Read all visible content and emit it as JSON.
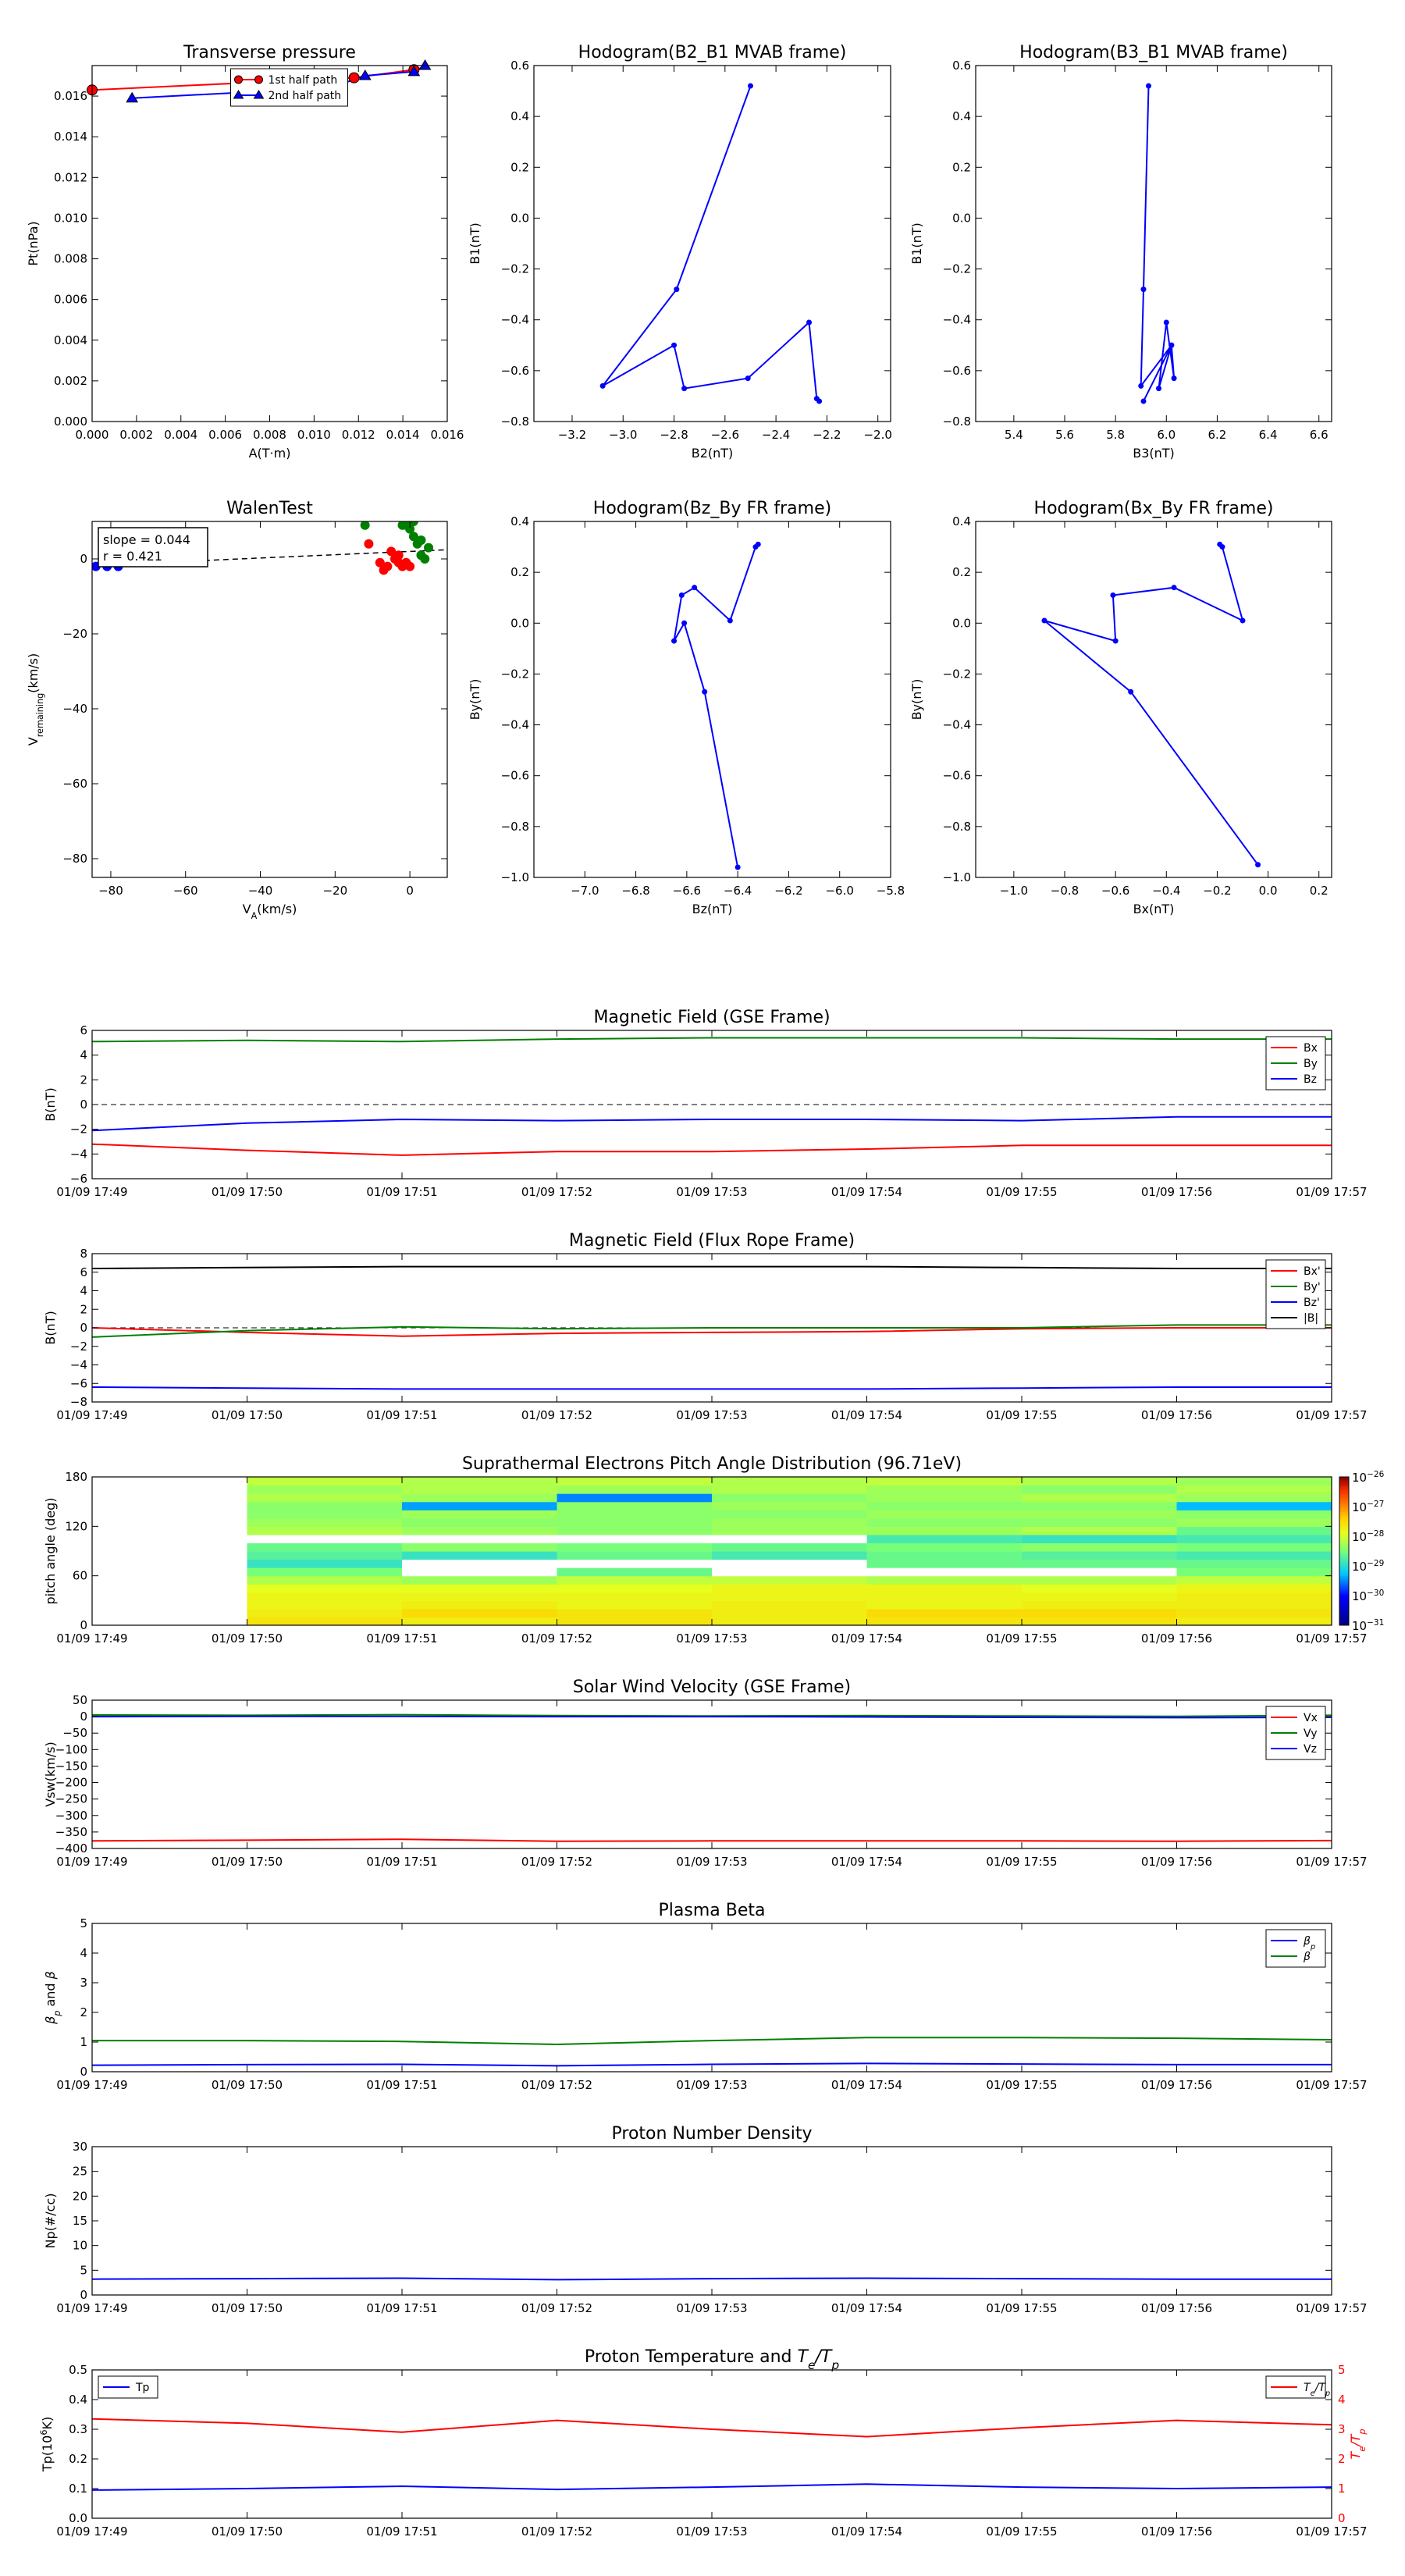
{
  "colors": {
    "red": "#ff0000",
    "green": "#008000",
    "blue": "#0000ff",
    "black": "#000000"
  },
  "chart_data": [
    {
      "id": "tp",
      "type": "line",
      "title": "Transverse pressure",
      "xlabel": "A(T·m)",
      "ylabel": "Pt(nPa)",
      "xlim": [
        0,
        0.016
      ],
      "ylim": [
        0,
        0.0175
      ],
      "xticks": [
        0,
        0.002,
        0.004,
        0.006,
        0.008,
        0.01,
        0.012,
        0.014,
        0.016
      ],
      "yticks": [
        0,
        0.002,
        0.004,
        0.006,
        0.008,
        0.01,
        0.012,
        0.014,
        0.016
      ],
      "tick_decimals": 3,
      "legend": "top-center",
      "series": [
        {
          "name": "1st half path",
          "color": "red",
          "marker": "circle",
          "x": [
            0.0,
            0.0118,
            0.0145
          ],
          "y": [
            0.0163,
            0.0169,
            0.0173
          ]
        },
        {
          "name": "2nd half path",
          "color": "blue",
          "marker": "triangle",
          "x": [
            0.0018,
            0.0107,
            0.0123,
            0.0145,
            0.015
          ],
          "y": [
            0.0159,
            0.0164,
            0.017,
            0.0172,
            0.0175
          ]
        }
      ]
    },
    {
      "id": "h1",
      "type": "line",
      "title": "Hodogram(B2_B1 MVAB frame)",
      "xlabel": "B2(nT)",
      "ylabel": "B1(nT)",
      "xlim": [
        -3.35,
        -1.95
      ],
      "ylim": [
        -0.8,
        0.6
      ],
      "xticks": [
        -3.2,
        -3.0,
        -2.8,
        -2.6,
        -2.4,
        -2.2,
        -2.0
      ],
      "yticks": [
        -0.8,
        -0.6,
        -0.4,
        -0.2,
        0.0,
        0.2,
        0.4,
        0.6
      ],
      "tick_decimals": 1,
      "series": [
        {
          "color": "blue",
          "marker": "dot",
          "x": [
            -2.5,
            -2.79,
            -3.08,
            -2.8,
            -2.76,
            -2.51,
            -2.27,
            -2.24,
            -2.23
          ],
          "y": [
            0.52,
            -0.28,
            -0.66,
            -0.5,
            -0.67,
            -0.63,
            -0.41,
            -0.71,
            -0.72
          ]
        }
      ]
    },
    {
      "id": "h2",
      "type": "line",
      "title": "Hodogram(B3_B1 MVAB frame)",
      "xlabel": "B3(nT)",
      "ylabel": "B1(nT)",
      "xlim": [
        5.25,
        6.65
      ],
      "ylim": [
        -0.8,
        0.6
      ],
      "xticks": [
        5.4,
        5.6,
        5.8,
        6.0,
        6.2,
        6.4,
        6.6
      ],
      "yticks": [
        -0.8,
        -0.6,
        -0.4,
        -0.2,
        0.0,
        0.2,
        0.4,
        0.6
      ],
      "tick_decimals": 1,
      "series": [
        {
          "color": "blue",
          "marker": "dot",
          "x": [
            5.93,
            5.91,
            5.9,
            6.02,
            5.97,
            6.0,
            6.03,
            6.02,
            5.91
          ],
          "y": [
            0.52,
            -0.28,
            -0.66,
            -0.5,
            -0.67,
            -0.41,
            -0.63,
            -0.5,
            -0.72
          ]
        }
      ]
    },
    {
      "id": "walen",
      "type": "scatter",
      "title": "WalenTest",
      "xlabel": "V_A(km/s)",
      "ylabel": "V_remaining(km/s)",
      "xlim": [
        -85,
        10
      ],
      "ylim": [
        -85,
        10
      ],
      "xticks": [
        -80,
        -60,
        -40,
        -20,
        0
      ],
      "yticks": [
        -80,
        -60,
        -40,
        -20,
        0
      ],
      "tick_decimals": 0,
      "annotation": {
        "slope": "slope = 0.044",
        "r": "r = 0.421"
      },
      "fit": {
        "slope": 0.044,
        "intercept": 2.0
      },
      "series": [
        {
          "color": "blue",
          "x": [
            -84,
            -81,
            -78
          ],
          "y": [
            -2,
            -2,
            -2
          ]
        },
        {
          "color": "red",
          "x": [
            -11,
            -8,
            -7,
            -5,
            -4,
            -3,
            -2,
            -1,
            0,
            -6,
            -3
          ],
          "y": [
            4,
            -1,
            -3,
            2,
            0,
            -1,
            -2,
            -1,
            -2,
            -2,
            1
          ]
        },
        {
          "color": "green",
          "x": [
            -12,
            -2,
            0,
            1,
            2,
            3,
            4,
            5,
            3,
            1,
            -1
          ],
          "y": [
            9,
            9,
            8,
            6,
            4,
            5,
            0,
            3,
            1,
            10,
            9
          ]
        }
      ]
    },
    {
      "id": "h3",
      "type": "line",
      "title": "Hodogram(Bz_By FR frame)",
      "xlabel": "Bz(nT)",
      "ylabel": "By(nT)",
      "xlim": [
        -7.2,
        -5.8
      ],
      "ylim": [
        -1.0,
        0.4
      ],
      "xticks": [
        -7.0,
        -6.8,
        -6.6,
        -6.4,
        -6.2,
        -6.0,
        -5.8
      ],
      "yticks": [
        -1.0,
        -0.8,
        -0.6,
        -0.4,
        -0.2,
        0.0,
        0.2,
        0.4
      ],
      "tick_decimals": 1,
      "series": [
        {
          "color": "blue",
          "marker": "dot",
          "x": [
            -6.4,
            -6.53,
            -6.61,
            -6.65,
            -6.62,
            -6.57,
            -6.43,
            -6.33,
            -6.32
          ],
          "y": [
            -0.96,
            -0.27,
            0.0,
            -0.07,
            0.11,
            0.14,
            0.01,
            0.3,
            0.31
          ]
        }
      ]
    },
    {
      "id": "h4",
      "type": "line",
      "title": "Hodogram(Bx_By FR frame)",
      "xlabel": "Bx(nT)",
      "ylabel": "By(nT)",
      "xlim": [
        -1.15,
        0.25
      ],
      "ylim": [
        -1.0,
        0.4
      ],
      "xticks": [
        -1.0,
        -0.8,
        -0.6,
        -0.4,
        -0.2,
        0.0,
        0.2
      ],
      "yticks": [
        -1.0,
        -0.8,
        -0.6,
        -0.4,
        -0.2,
        0.0,
        0.2,
        0.4
      ],
      "tick_decimals": 1,
      "series": [
        {
          "color": "blue",
          "marker": "dot",
          "x": [
            -0.04,
            -0.54,
            -0.88,
            -0.6,
            -0.61,
            -0.37,
            -0.1,
            -0.18,
            -0.19
          ],
          "y": [
            -0.95,
            -0.27,
            0.01,
            -0.07,
            0.11,
            0.14,
            0.01,
            0.3,
            0.31
          ]
        }
      ]
    },
    {
      "id": "mag_gse",
      "type": "line",
      "title": "Magnetic Field (GSE Frame)",
      "ylabel": "B(nT)",
      "x": [
        "01/09 17:49",
        "01/09 17:50",
        "01/09 17:51",
        "01/09 17:52",
        "01/09 17:53",
        "01/09 17:54",
        "01/09 17:55",
        "01/09 17:56",
        "01/09 17:57"
      ],
      "ylim": [
        -6,
        6
      ],
      "yticks": [
        -6,
        -4,
        -2,
        0,
        2,
        4,
        6
      ],
      "tick_decimals": 0,
      "zero_line": true,
      "legend": "right",
      "series": [
        {
          "name": "Bx",
          "color": "red",
          "values": [
            -3.2,
            -3.7,
            -4.1,
            -3.8,
            -3.8,
            -3.6,
            -3.3,
            -3.3,
            -3.3
          ]
        },
        {
          "name": "By",
          "color": "green",
          "values": [
            5.1,
            5.2,
            5.1,
            5.3,
            5.4,
            5.4,
            5.4,
            5.3,
            5.3
          ]
        },
        {
          "name": "Bz",
          "color": "blue",
          "values": [
            -2.1,
            -1.5,
            -1.2,
            -1.3,
            -1.2,
            -1.2,
            -1.3,
            -1.0,
            -1.0
          ]
        }
      ]
    },
    {
      "id": "mag_fr",
      "type": "line",
      "title": "Magnetic Field (Flux Rope Frame)",
      "ylabel": "B(nT)",
      "x": [
        "01/09 17:49",
        "01/09 17:50",
        "01/09 17:51",
        "01/09 17:52",
        "01/09 17:53",
        "01/09 17:54",
        "01/09 17:55",
        "01/09 17:56",
        "01/09 17:57"
      ],
      "ylim": [
        -8,
        8
      ],
      "yticks": [
        -8,
        -6,
        -4,
        -2,
        0,
        2,
        4,
        6,
        8
      ],
      "tick_decimals": 0,
      "zero_line": true,
      "legend": "right",
      "series": [
        {
          "name": "Bx'",
          "color": "red",
          "values": [
            0.0,
            -0.5,
            -0.9,
            -0.6,
            -0.5,
            -0.4,
            -0.1,
            0.0,
            0.0
          ]
        },
        {
          "name": "By'",
          "color": "green",
          "values": [
            -1.0,
            -0.3,
            0.1,
            -0.1,
            0.0,
            0.0,
            0.0,
            0.3,
            0.3
          ]
        },
        {
          "name": "Bz'",
          "color": "blue",
          "values": [
            -6.4,
            -6.5,
            -6.6,
            -6.6,
            -6.6,
            -6.6,
            -6.5,
            -6.4,
            -6.4
          ]
        },
        {
          "name": "|B|",
          "color": "black",
          "values": [
            6.4,
            6.5,
            6.6,
            6.6,
            6.6,
            6.6,
            6.5,
            6.4,
            6.4
          ]
        }
      ]
    },
    {
      "id": "pad",
      "type": "heatmap",
      "title": "Suprathermal Electrons Pitch Angle Distribution (96.71eV)",
      "ylabel": "pitch angle (deg)",
      "x": [
        "01/09 17:49",
        "01/09 17:50",
        "01/09 17:51",
        "01/09 17:52",
        "01/09 17:53",
        "01/09 17:54",
        "01/09 17:55",
        "01/09 17:56",
        "01/09 17:57"
      ],
      "ylim": [
        0,
        180
      ],
      "yticks": [
        0,
        60,
        120,
        180
      ],
      "colorbar_ticks": [
        "10^-26",
        "10^-27",
        "10^-28",
        "10^-29",
        "10^-30",
        "10^-31"
      ],
      "data_start_col": 1,
      "rows": 18,
      "log_values": [
        [
          -27.6,
          -27.7,
          -27.6,
          -27.7,
          -27.6,
          -27.6,
          -27.7,
          -27.6
        ],
        [
          -27.7,
          -27.5,
          -27.6,
          -27.7,
          -27.5,
          -27.5,
          -27.6,
          -27.7
        ],
        [
          -27.8,
          -27.7,
          -27.8,
          -27.7,
          -27.8,
          -27.7,
          -27.7,
          -27.6
        ],
        [
          -27.8,
          -27.8,
          -27.8,
          -27.8,
          -27.8,
          -27.8,
          -27.7,
          -27.8
        ],
        [
          -27.9,
          -27.9,
          -27.9,
          -27.8,
          -27.8,
          -27.9,
          -27.8,
          -27.8
        ],
        [
          -28.2,
          -28.3,
          -28.1,
          -28.1,
          -28.2,
          -28.2,
          -28.1,
          -28.2
        ],
        [
          -28.5,
          -31.5,
          -28.6,
          -31.5,
          -31.5,
          -31.5,
          -28.5,
          -28.4
        ],
        [
          -28.9,
          -31.5,
          -31.5,
          -31.5,
          -28.6,
          -28.6,
          -28.6,
          -28.7
        ],
        [
          -28.7,
          -28.9,
          -28.6,
          -28.8,
          -28.6,
          -28.7,
          -28.8,
          -28.6
        ],
        [
          -28.6,
          -28.4,
          -28.5,
          -28.6,
          -28.5,
          -28.4,
          -28.5,
          -28.6
        ],
        [
          -31.5,
          -31.5,
          -31.5,
          -31.5,
          -28.8,
          -28.9,
          -28.8,
          -28.5
        ],
        [
          -28.2,
          -28.3,
          -28.4,
          -28.3,
          -28.3,
          -28.2,
          -28.6,
          -28.3
        ],
        [
          -28.3,
          -28.4,
          -28.4,
          -28.3,
          -28.4,
          -28.4,
          -28.3,
          -28.2
        ],
        [
          -28.4,
          -28.3,
          -28.4,
          -28.4,
          -28.3,
          -28.3,
          -28.4,
          -28.2
        ],
        [
          -28.4,
          -29.4,
          -28.4,
          -28.3,
          -28.4,
          -28.4,
          -29.3,
          -28.4
        ],
        [
          -28.2,
          -28.3,
          -29.5,
          -28.4,
          -28.3,
          -28.2,
          -28.3,
          -28.4
        ],
        [
          -28.3,
          -28.2,
          -28.3,
          -28.2,
          -28.3,
          -28.4,
          -28.2,
          -28.3
        ],
        [
          -28.1,
          -28.2,
          -28.1,
          -28.2,
          -28.1,
          -28.2,
          -28.3,
          -28.2
        ]
      ]
    },
    {
      "id": "vsw",
      "type": "line",
      "title": "Solar Wind Velocity (GSE Frame)",
      "ylabel": "Vsw(km/s)",
      "x": [
        "01/09 17:49",
        "01/09 17:50",
        "01/09 17:51",
        "01/09 17:52",
        "01/09 17:53",
        "01/09 17:54",
        "01/09 17:55",
        "01/09 17:56",
        "01/09 17:57"
      ],
      "ylim": [
        -400,
        50
      ],
      "yticks": [
        -400,
        -350,
        -300,
        -250,
        -200,
        -150,
        -100,
        -50,
        0,
        50
      ],
      "tick_decimals": 0,
      "legend": "right",
      "series": [
        {
          "name": "Vx",
          "color": "red",
          "values": [
            -377,
            -375,
            -372,
            -378,
            -377,
            -377,
            -377,
            -378,
            -376
          ]
        },
        {
          "name": "Vy",
          "color": "green",
          "values": [
            5,
            4,
            6,
            3,
            2,
            3,
            2,
            1,
            4
          ]
        },
        {
          "name": "Vz",
          "color": "blue",
          "values": [
            0,
            1,
            1,
            0,
            0,
            -1,
            -2,
            -3,
            -2
          ]
        }
      ]
    },
    {
      "id": "beta",
      "type": "line",
      "title": "Plasma Beta",
      "ylabel": "β_p and β",
      "x": [
        "01/09 17:49",
        "01/09 17:50",
        "01/09 17:51",
        "01/09 17:52",
        "01/09 17:53",
        "01/09 17:54",
        "01/09 17:55",
        "01/09 17:56",
        "01/09 17:57"
      ],
      "ylim": [
        0,
        5
      ],
      "yticks": [
        0,
        1,
        2,
        3,
        4,
        5
      ],
      "tick_decimals": 0,
      "legend": "top-right",
      "series": [
        {
          "name": "β_p",
          "color": "blue",
          "values": [
            0.22,
            0.24,
            0.25,
            0.2,
            0.25,
            0.28,
            0.26,
            0.24,
            0.24
          ]
        },
        {
          "name": "β",
          "color": "green",
          "values": [
            1.05,
            1.05,
            1.02,
            0.92,
            1.05,
            1.15,
            1.15,
            1.13,
            1.08
          ]
        }
      ]
    },
    {
      "id": "np",
      "type": "line",
      "title": "Proton Number Density",
      "ylabel": "Np(#/cc)",
      "x": [
        "01/09 17:49",
        "01/09 17:50",
        "01/09 17:51",
        "01/09 17:52",
        "01/09 17:53",
        "01/09 17:54",
        "01/09 17:55",
        "01/09 17:56",
        "01/09 17:57"
      ],
      "ylim": [
        0,
        30
      ],
      "yticks": [
        0,
        5,
        10,
        15,
        20,
        25,
        30
      ],
      "tick_decimals": 0,
      "series": [
        {
          "color": "blue",
          "values": [
            3.2,
            3.3,
            3.4,
            3.1,
            3.3,
            3.4,
            3.3,
            3.2,
            3.2
          ]
        }
      ]
    },
    {
      "id": "temp",
      "type": "line",
      "title": "Proton Temperature and T_e/T_p",
      "ylabel": "Tp(10^6K)",
      "y2label": "T_e/T_p",
      "x": [
        "01/09 17:49",
        "01/09 17:50",
        "01/09 17:51",
        "01/09 17:52",
        "01/09 17:53",
        "01/09 17:54",
        "01/09 17:55",
        "01/09 17:56",
        "01/09 17:57"
      ],
      "ylim": [
        0,
        0.5
      ],
      "yticks": [
        0,
        0.1,
        0.2,
        0.3,
        0.4,
        0.5
      ],
      "tick_decimals": 1,
      "y2lim": [
        0,
        5
      ],
      "y2ticks": [
        0,
        1,
        2,
        3,
        4,
        5
      ],
      "series": [
        {
          "name": "Tp",
          "color": "blue",
          "axis": "left",
          "legend": "top-left",
          "values": [
            0.095,
            0.1,
            0.108,
            0.097,
            0.105,
            0.115,
            0.105,
            0.1,
            0.105
          ]
        },
        {
          "name": "T_e/T_p",
          "color": "red",
          "axis": "right",
          "legend": "top-right",
          "values": [
            3.35,
            3.2,
            2.9,
            3.3,
            3.0,
            2.75,
            3.05,
            3.3,
            3.15
          ]
        }
      ]
    }
  ]
}
